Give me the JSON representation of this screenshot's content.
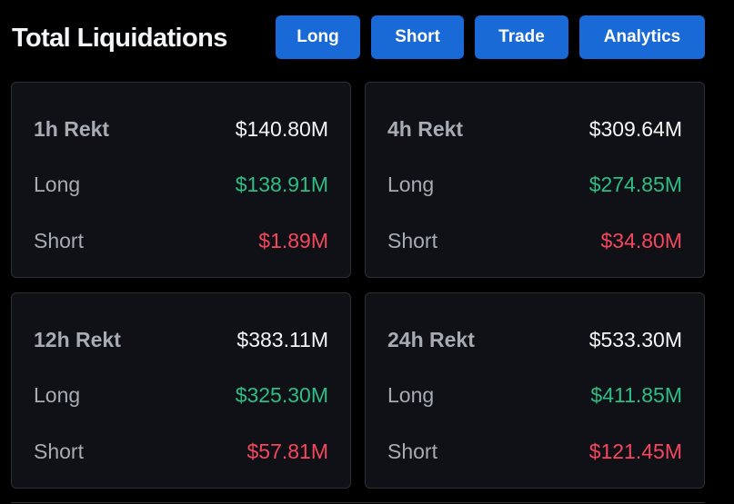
{
  "header": {
    "title": "Total Liquidations",
    "buttons": {
      "long": "Long",
      "short": "Short",
      "trade": "Trade",
      "analytics": "Analytics"
    }
  },
  "cards": [
    {
      "period_label": "1h Rekt",
      "total": "$140.80M",
      "long_label": "Long",
      "long_value": "$138.91M",
      "short_label": "Short",
      "short_value": "$1.89M"
    },
    {
      "period_label": "4h Rekt",
      "total": "$309.64M",
      "long_label": "Long",
      "long_value": "$274.85M",
      "short_label": "Short",
      "short_value": "$34.80M"
    },
    {
      "period_label": "12h Rekt",
      "total": "$383.11M",
      "long_label": "Long",
      "long_value": "$325.30M",
      "short_label": "Short",
      "short_value": "$57.81M"
    },
    {
      "period_label": "24h Rekt",
      "total": "$533.30M",
      "long_label": "Long",
      "long_value": "$411.85M",
      "short_label": "Short",
      "short_value": "$121.45M"
    }
  ],
  "colors": {
    "background": "#000000",
    "card_background": "#0f1116",
    "button_blue": "#1969d6",
    "long_green": "#2ebd85",
    "short_red": "#f6465d",
    "label_gray": "#a7abb3",
    "text_white": "#f4f5f7"
  }
}
